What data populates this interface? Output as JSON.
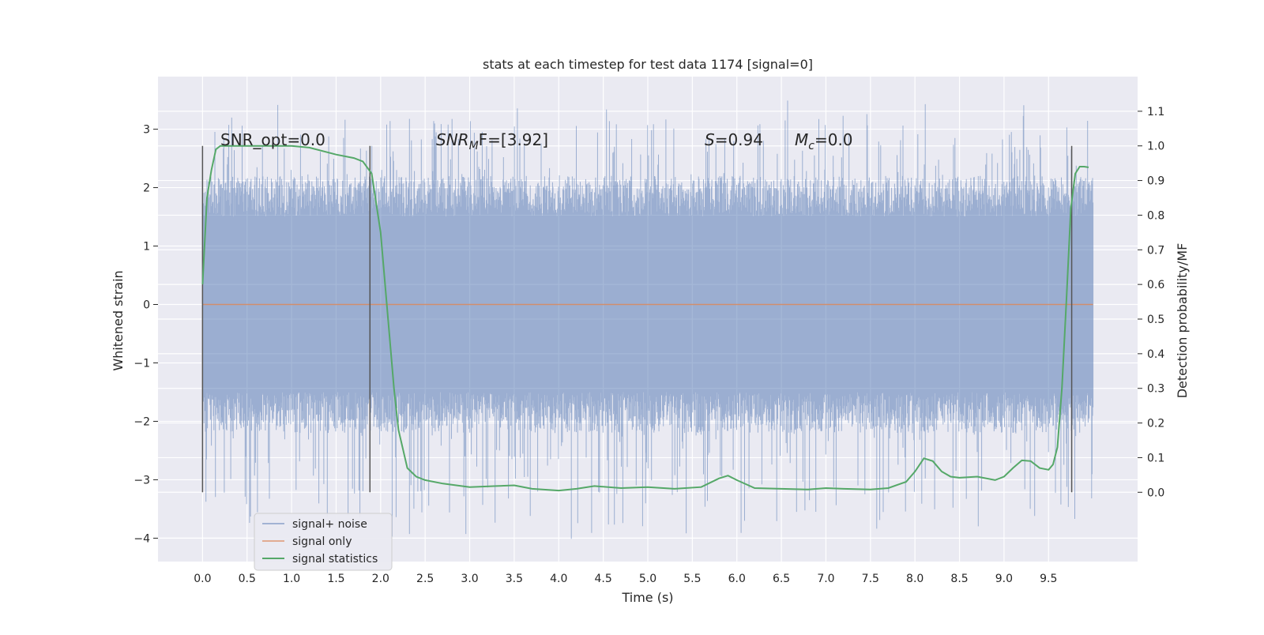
{
  "chart_data": {
    "type": "line",
    "title": "stats at each timestep for test data 1174 [signal=0]",
    "xlabel": "Time (s)",
    "ylabel": "Whitened strain",
    "y2label": "Detection probability/MF",
    "xlim": [
      -0.5,
      10.5
    ],
    "ylim": [
      -4.4,
      3.9
    ],
    "y2lim": [
      -0.2,
      1.2
    ],
    "x_ticks": [
      "0.0",
      "0.5",
      "1.0",
      "1.5",
      "2.0",
      "2.5",
      "3.0",
      "3.5",
      "4.0",
      "4.5",
      "5.0",
      "5.5",
      "6.0",
      "6.5",
      "7.0",
      "7.5",
      "8.0",
      "8.5",
      "9.0",
      "9.5"
    ],
    "y_ticks": [
      "3",
      "2",
      "1",
      "0",
      "−1",
      "−2",
      "−3",
      "−4"
    ],
    "y2_ticks": [
      "1.1",
      "1.0",
      "0.9",
      "0.8",
      "0.7",
      "0.6",
      "0.5",
      "0.4",
      "0.3",
      "0.2",
      "0.1",
      "0.0"
    ],
    "grid": true,
    "legend_position": "lower-left",
    "background": "#eaeaf2",
    "colors": {
      "noise": "#4c72b0",
      "signal": "#dd8452",
      "stats": "#55a868",
      "marker": "#555555"
    },
    "series": [
      {
        "name": "signal+ noise",
        "axis": "left",
        "x_range": [
          0.0,
          10.0
        ],
        "approx_envelope": {
          "core_amplitude": 1.5,
          "peak_max": 3.6,
          "peak_min": -4.1
        }
      },
      {
        "name": "signal only",
        "axis": "left",
        "x": [
          0.0,
          10.0
        ],
        "y": [
          0.0,
          0.0
        ]
      },
      {
        "name": "signal statistics",
        "axis": "right",
        "x": [
          0.0,
          0.05,
          0.1,
          0.15,
          0.2,
          0.3,
          0.5,
          1.0,
          1.2,
          1.5,
          1.7,
          1.8,
          1.9,
          2.0,
          2.1,
          2.15,
          2.2,
          2.3,
          2.4,
          2.5,
          2.7,
          3.0,
          3.3,
          3.5,
          3.7,
          4.0,
          4.2,
          4.4,
          4.7,
          5.0,
          5.3,
          5.6,
          5.8,
          5.9,
          6.0,
          6.2,
          6.5,
          6.8,
          7.0,
          7.2,
          7.5,
          7.7,
          7.9,
          8.0,
          8.1,
          8.2,
          8.3,
          8.4,
          8.5,
          8.7,
          8.9,
          9.0,
          9.1,
          9.2,
          9.3,
          9.4,
          9.5,
          9.55,
          9.6,
          9.65,
          9.7,
          9.75,
          9.8,
          9.85,
          9.9,
          9.95
        ],
        "y": [
          0.6,
          0.85,
          0.93,
          0.99,
          1.0,
          1.0,
          1.0,
          1.0,
          0.995,
          0.975,
          0.965,
          0.955,
          0.92,
          0.75,
          0.45,
          0.3,
          0.18,
          0.07,
          0.045,
          0.035,
          0.025,
          0.015,
          0.018,
          0.02,
          0.01,
          0.005,
          0.01,
          0.018,
          0.012,
          0.015,
          0.01,
          0.015,
          0.04,
          0.048,
          0.035,
          0.012,
          0.01,
          0.008,
          0.012,
          0.01,
          0.008,
          0.012,
          0.03,
          0.06,
          0.098,
          0.09,
          0.06,
          0.045,
          0.042,
          0.045,
          0.035,
          0.045,
          0.07,
          0.092,
          0.09,
          0.07,
          0.065,
          0.08,
          0.13,
          0.3,
          0.55,
          0.82,
          0.92,
          0.94,
          0.94,
          0.938
        ]
      }
    ],
    "vlines": [
      0.0,
      1.88,
      9.76
    ],
    "annotations": {
      "snr_opt": "SNR_opt=0.0",
      "snr_mf_base": "SNR",
      "snr_mf_sub": "M",
      "snr_mf_rest": "F=[3.92]",
      "s_var": "S",
      "s_value": "=0.94",
      "mc_base": "M",
      "mc_sub": "c",
      "mc_value": "=0.0"
    },
    "legend": [
      "signal+ noise",
      "signal only",
      "signal statistics"
    ]
  }
}
